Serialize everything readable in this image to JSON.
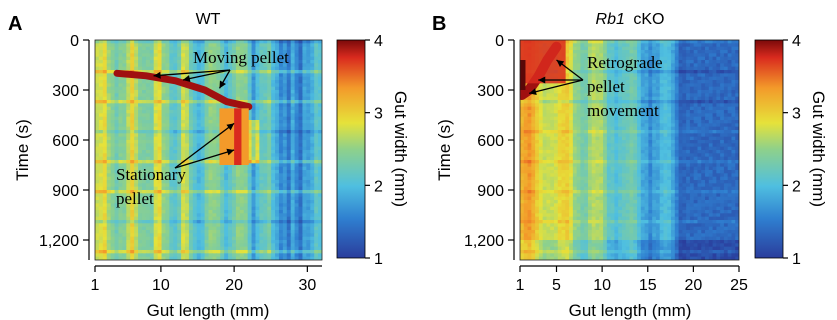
{
  "chart_data": [
    {
      "type": "heatmap",
      "panel_letter": "A",
      "title": "WT",
      "title_italic_part": "",
      "xlabel": "Gut length (mm)",
      "ylabel": "Time (s)",
      "xlim": [
        1,
        32
      ],
      "ylim": [
        0,
        1320
      ],
      "xticks": [
        1,
        10,
        20,
        30
      ],
      "yticks": [
        0,
        300,
        600,
        900,
        1200
      ],
      "ytick_labels": [
        "0",
        "300",
        "600",
        "900",
        "1,200"
      ],
      "colorbar": {
        "label": "Gut width (mm)",
        "range": [
          1,
          4
        ],
        "ticks": [
          1,
          2,
          3,
          4
        ]
      },
      "annotations": [
        {
          "text": "Moving pellet",
          "targets": [
            [
              9,
              215
            ],
            [
              13,
              240
            ],
            [
              18,
              290
            ]
          ]
        },
        {
          "text": "Stationary pellet",
          "targets": [
            [
              20,
              500
            ],
            [
              20,
              660
            ]
          ]
        }
      ],
      "pellet_track": [
        [
          4,
          200
        ],
        [
          8,
          215
        ],
        [
          12,
          245
        ],
        [
          16,
          300
        ],
        [
          19,
          370
        ],
        [
          22,
          400
        ]
      ],
      "stationary_pellet": {
        "x_range": [
          18,
          22
        ],
        "time_range": [
          410,
          750
        ]
      }
    },
    {
      "type": "heatmap",
      "panel_letter": "B",
      "title": "cKO",
      "title_italic_part": "Rb1",
      "xlabel": "Gut length (mm)",
      "ylabel": "Time (s)",
      "xlim": [
        1,
        25
      ],
      "ylim": [
        0,
        1320
      ],
      "xticks": [
        1,
        5,
        10,
        15,
        20,
        25
      ],
      "yticks": [
        0,
        300,
        600,
        900,
        1200
      ],
      "ytick_labels": [
        "0",
        "300",
        "600",
        "900",
        "1,200"
      ],
      "colorbar": {
        "label": "Gut width (mm)",
        "range": [
          1,
          4
        ],
        "ticks": [
          1,
          2,
          3,
          4
        ]
      },
      "annotations": [
        {
          "text": "Retrograde pellet movement",
          "lines": [
            "Retrograde",
            "pellet",
            "movement"
          ],
          "targets": [
            [
              5,
              120
            ],
            [
              3,
              240
            ],
            [
              2,
              320
            ]
          ]
        }
      ],
      "pellet_track": [
        [
          5,
          40
        ],
        [
          4,
          120
        ],
        [
          3,
          220
        ],
        [
          2,
          300
        ],
        [
          1.2,
          330
        ]
      ]
    }
  ],
  "colors": {
    "scale": [
      "#2a3d9c",
      "#2f7fd0",
      "#4fbfe0",
      "#8fd18a",
      "#e6e23a",
      "#f39a2a",
      "#d92a1e",
      "#7a0a0a"
    ]
  }
}
